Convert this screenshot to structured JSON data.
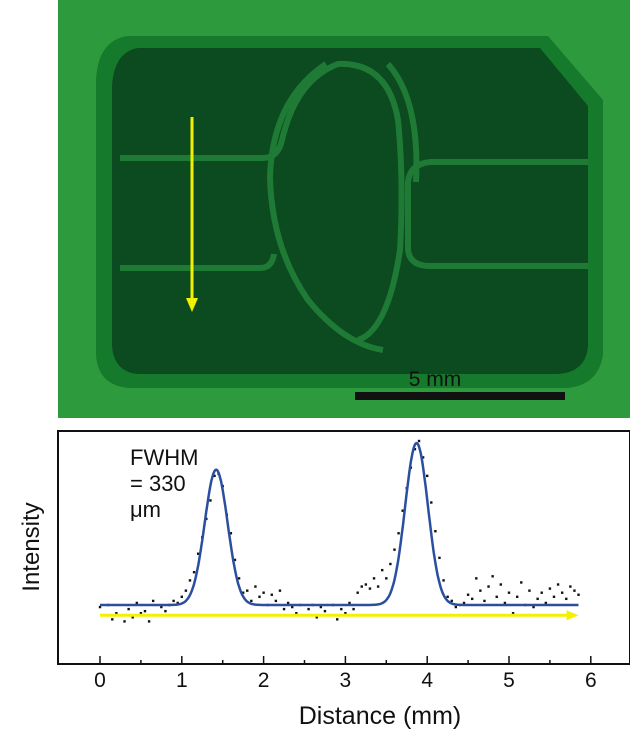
{
  "image_panel": {
    "scale_bar_label": "5 mm"
  },
  "chart_data": {
    "type": "scatter",
    "title": "",
    "xlabel": "Distance (mm)",
    "ylabel": "Intensity",
    "xlim": [
      0,
      6.2
    ],
    "ylim": [
      0,
      1
    ],
    "xticks": [
      "0",
      "1",
      "2",
      "3",
      "4",
      "5",
      "6"
    ],
    "annotation": "FWHM = 330 μm",
    "grid": false,
    "legend": "none",
    "fit_curve": {
      "color": "#2b4fa0",
      "baseline": 0.2,
      "peaks": [
        {
          "center": 1.42,
          "height": 0.66,
          "fwhm": 0.33
        },
        {
          "center": 3.87,
          "height": 0.79,
          "fwhm": 0.33
        }
      ]
    },
    "data_points": {
      "color": "#111111",
      "x": [
        0.0,
        0.05,
        0.1,
        0.15,
        0.2,
        0.25,
        0.3,
        0.35,
        0.4,
        0.45,
        0.5,
        0.55,
        0.6,
        0.65,
        0.7,
        0.75,
        0.8,
        0.85,
        0.9,
        0.95,
        1.0,
        1.05,
        1.1,
        1.15,
        1.2,
        1.25,
        1.3,
        1.35,
        1.4,
        1.45,
        1.5,
        1.55,
        1.6,
        1.65,
        1.7,
        1.75,
        1.8,
        1.85,
        1.9,
        1.95,
        2.0,
        2.05,
        2.1,
        2.15,
        2.2,
        2.25,
        2.3,
        2.35,
        2.4,
        2.45,
        2.5,
        2.55,
        2.6,
        2.65,
        2.7,
        2.75,
        2.8,
        2.85,
        2.9,
        2.95,
        3.0,
        3.05,
        3.1,
        3.15,
        3.2,
        3.25,
        3.3,
        3.35,
        3.4,
        3.45,
        3.5,
        3.55,
        3.6,
        3.65,
        3.7,
        3.75,
        3.8,
        3.85,
        3.9,
        3.95,
        4.0,
        4.05,
        4.1,
        4.15,
        4.2,
        4.25,
        4.3,
        4.35,
        4.4,
        4.45,
        4.5,
        4.55,
        4.6,
        4.65,
        4.7,
        4.75,
        4.8,
        4.85,
        4.9,
        4.95,
        5.0,
        5.05,
        5.1,
        5.15,
        5.2,
        5.25,
        5.3,
        5.35,
        5.4,
        5.45,
        5.5,
        5.55,
        5.6,
        5.65,
        5.7,
        5.75,
        5.8,
        5.85
      ],
      "y": [
        0.19,
        0.15,
        0.2,
        0.13,
        0.16,
        0.15,
        0.12,
        0.18,
        0.14,
        0.21,
        0.16,
        0.17,
        0.12,
        0.22,
        0.15,
        0.19,
        0.17,
        0.2,
        0.22,
        0.21,
        0.24,
        0.27,
        0.32,
        0.36,
        0.45,
        0.53,
        0.62,
        0.71,
        0.83,
        0.84,
        0.78,
        0.64,
        0.55,
        0.42,
        0.33,
        0.26,
        0.27,
        0.22,
        0.29,
        0.24,
        0.26,
        0.2,
        0.25,
        0.22,
        0.27,
        0.18,
        0.21,
        0.19,
        0.16,
        0.2,
        0.15,
        0.18,
        0.2,
        0.14,
        0.19,
        0.17,
        0.15,
        0.2,
        0.13,
        0.18,
        0.16,
        0.21,
        0.18,
        0.26,
        0.29,
        0.3,
        0.28,
        0.33,
        0.29,
        0.37,
        0.33,
        0.4,
        0.47,
        0.55,
        0.66,
        0.77,
        0.87,
        0.96,
        1.0,
        0.92,
        0.83,
        0.7,
        0.56,
        0.43,
        0.32,
        0.24,
        0.22,
        0.19,
        0.2,
        0.21,
        0.25,
        0.23,
        0.33,
        0.27,
        0.22,
        0.29,
        0.34,
        0.24,
        0.3,
        0.21,
        0.26,
        0.16,
        0.24,
        0.31,
        0.2,
        0.27,
        0.19,
        0.23,
        0.26,
        0.21,
        0.28,
        0.24,
        0.3,
        0.26,
        0.23,
        0.29,
        0.27,
        0.25
      ]
    },
    "yellow_arrow": {
      "x_from": 0.0,
      "x_to": 5.85,
      "y": 0.15,
      "color": "#f3f000"
    }
  }
}
